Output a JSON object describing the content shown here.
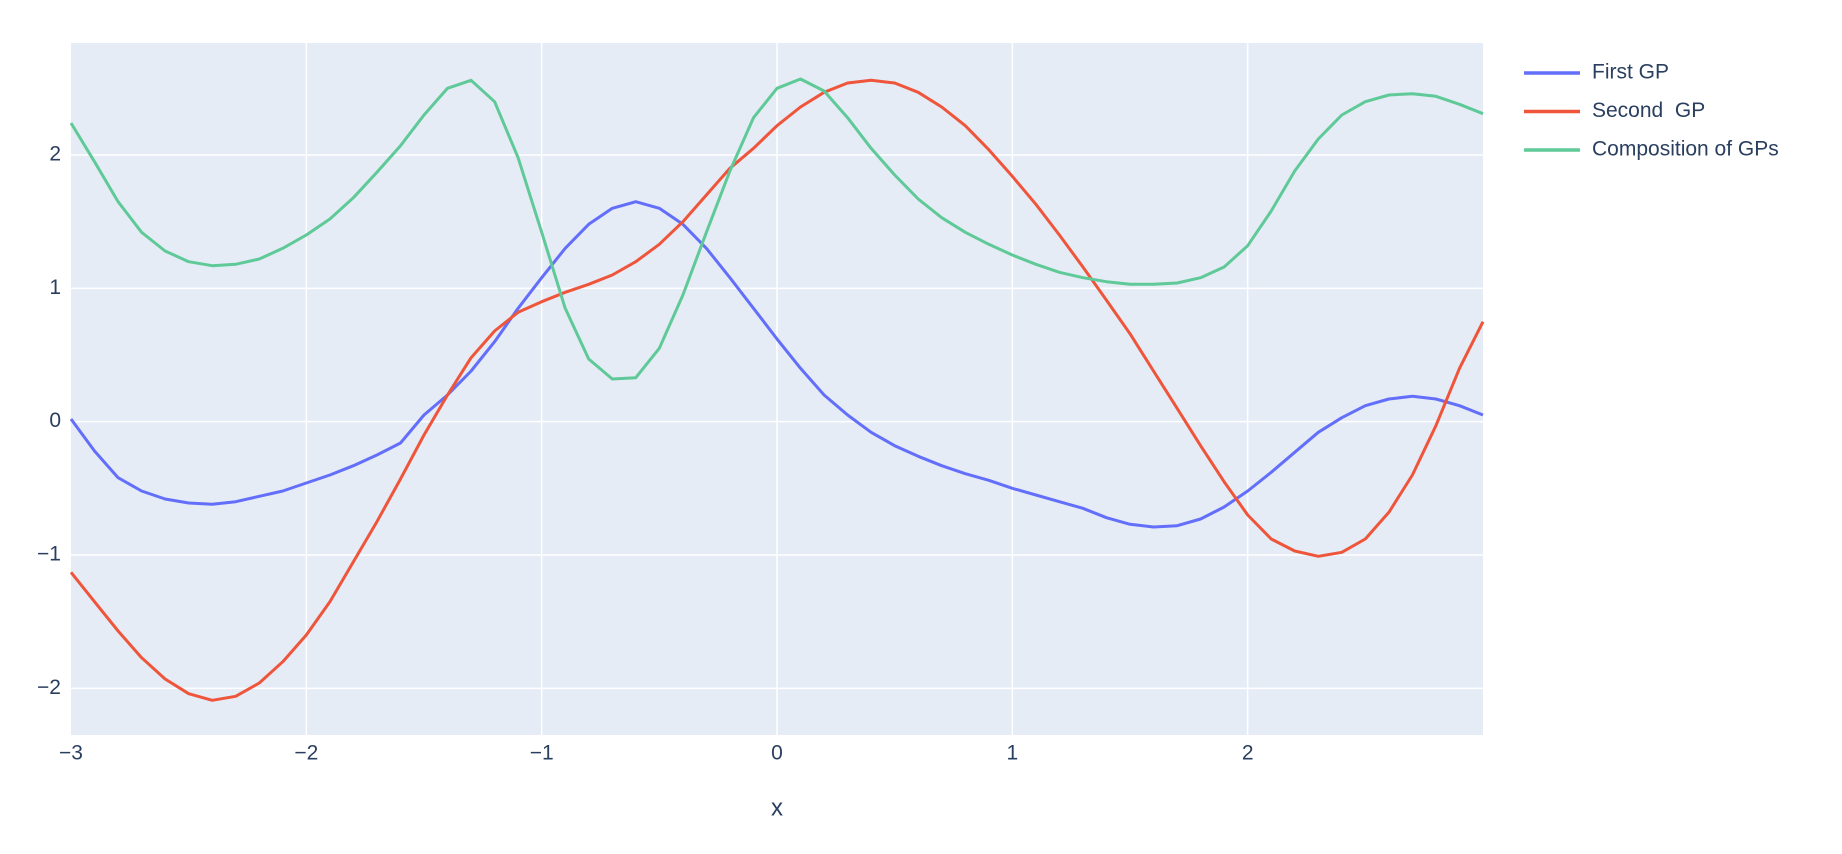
{
  "chart_data": {
    "type": "line",
    "x_label": "x",
    "x": [
      -3,
      -2.9,
      -2.8,
      -2.7,
      -2.6,
      -2.5,
      -2.4,
      -2.3,
      -2.2,
      -2.1,
      -2,
      -1.9,
      -1.8,
      -1.7,
      -1.6,
      -1.5,
      -1.4,
      -1.3,
      -1.2,
      -1.1,
      -1,
      -0.9,
      -0.8,
      -0.7,
      -0.6,
      -0.5,
      -0.4,
      -0.3,
      -0.2,
      -0.1,
      0,
      0.1,
      0.2,
      0.3,
      0.4,
      0.5,
      0.6,
      0.7,
      0.8,
      0.9,
      1,
      1.1,
      1.2,
      1.3,
      1.4,
      1.5,
      1.6,
      1.7,
      1.8,
      1.9,
      2,
      2.1,
      2.2,
      2.3,
      2.4,
      2.5,
      2.6,
      2.7,
      2.8,
      2.9,
      3
    ],
    "series": [
      {
        "name": "First GP",
        "color": "#636efa",
        "values": [
          0.02,
          -0.22,
          -0.42,
          -0.52,
          -0.58,
          -0.61,
          -0.62,
          -0.6,
          -0.56,
          -0.52,
          -0.46,
          -0.4,
          -0.33,
          -0.25,
          -0.16,
          0.05,
          0.2,
          0.38,
          0.6,
          0.85,
          1.08,
          1.3,
          1.48,
          1.6,
          1.65,
          1.6,
          1.48,
          1.3,
          1.08,
          0.85,
          0.62,
          0.4,
          0.2,
          0.05,
          -0.08,
          -0.18,
          -0.26,
          -0.33,
          -0.39,
          -0.44,
          -0.5,
          -0.55,
          -0.6,
          -0.65,
          -0.72,
          -0.77,
          -0.79,
          -0.78,
          -0.73,
          -0.64,
          -0.52,
          -0.38,
          -0.23,
          -0.08,
          0.03,
          0.12,
          0.17,
          0.19,
          0.17,
          0.12,
          0.05
        ]
      },
      {
        "name": "Second  GP",
        "color": "#ef553b",
        "values": [
          -1.13,
          -1.35,
          -1.57,
          -1.77,
          -1.93,
          -2.04,
          -2.09,
          -2.06,
          -1.96,
          -1.8,
          -1.6,
          -1.35,
          -1.05,
          -0.75,
          -0.43,
          -0.1,
          0.2,
          0.48,
          0.68,
          0.82,
          0.9,
          0.97,
          1.03,
          1.1,
          1.2,
          1.33,
          1.5,
          1.7,
          1.9,
          2.05,
          2.22,
          2.36,
          2.47,
          2.54,
          2.56,
          2.54,
          2.47,
          2.36,
          2.22,
          2.04,
          1.84,
          1.63,
          1.4,
          1.16,
          0.91,
          0.66,
          0.38,
          0.1,
          -0.18,
          -0.45,
          -0.7,
          -0.88,
          -0.97,
          -1.01,
          -0.98,
          -0.88,
          -0.68,
          -0.4,
          -0.03,
          0.4,
          0.75
        ]
      },
      {
        "name": "Composition of GPs",
        "color": "#5fc998",
        "values": [
          2.24,
          1.95,
          1.65,
          1.42,
          1.28,
          1.2,
          1.17,
          1.18,
          1.22,
          1.3,
          1.4,
          1.52,
          1.68,
          1.87,
          2.07,
          2.3,
          2.5,
          2.56,
          2.4,
          1.98,
          1.42,
          0.85,
          0.47,
          0.32,
          0.33,
          0.55,
          0.95,
          1.42,
          1.88,
          2.28,
          2.5,
          2.57,
          2.48,
          2.28,
          2.05,
          1.85,
          1.67,
          1.53,
          1.42,
          1.33,
          1.25,
          1.18,
          1.12,
          1.08,
          1.05,
          1.03,
          1.03,
          1.04,
          1.08,
          1.16,
          1.32,
          1.58,
          1.88,
          2.12,
          2.3,
          2.4,
          2.45,
          2.46,
          2.44,
          2.38,
          2.31
        ]
      }
    ],
    "xlim": [
      -3,
      3
    ],
    "ylim": [
      -2.35,
      2.84
    ],
    "xticks": [
      {
        "value": -3,
        "label": "−3"
      },
      {
        "value": -2,
        "label": "−2"
      },
      {
        "value": -1,
        "label": "−1"
      },
      0,
      1,
      2
    ],
    "yticks": [
      {
        "value": -2,
        "label": "−2"
      },
      {
        "value": -1,
        "label": "−1"
      },
      0,
      1,
      2
    ],
    "grid": true,
    "legend": "right"
  }
}
